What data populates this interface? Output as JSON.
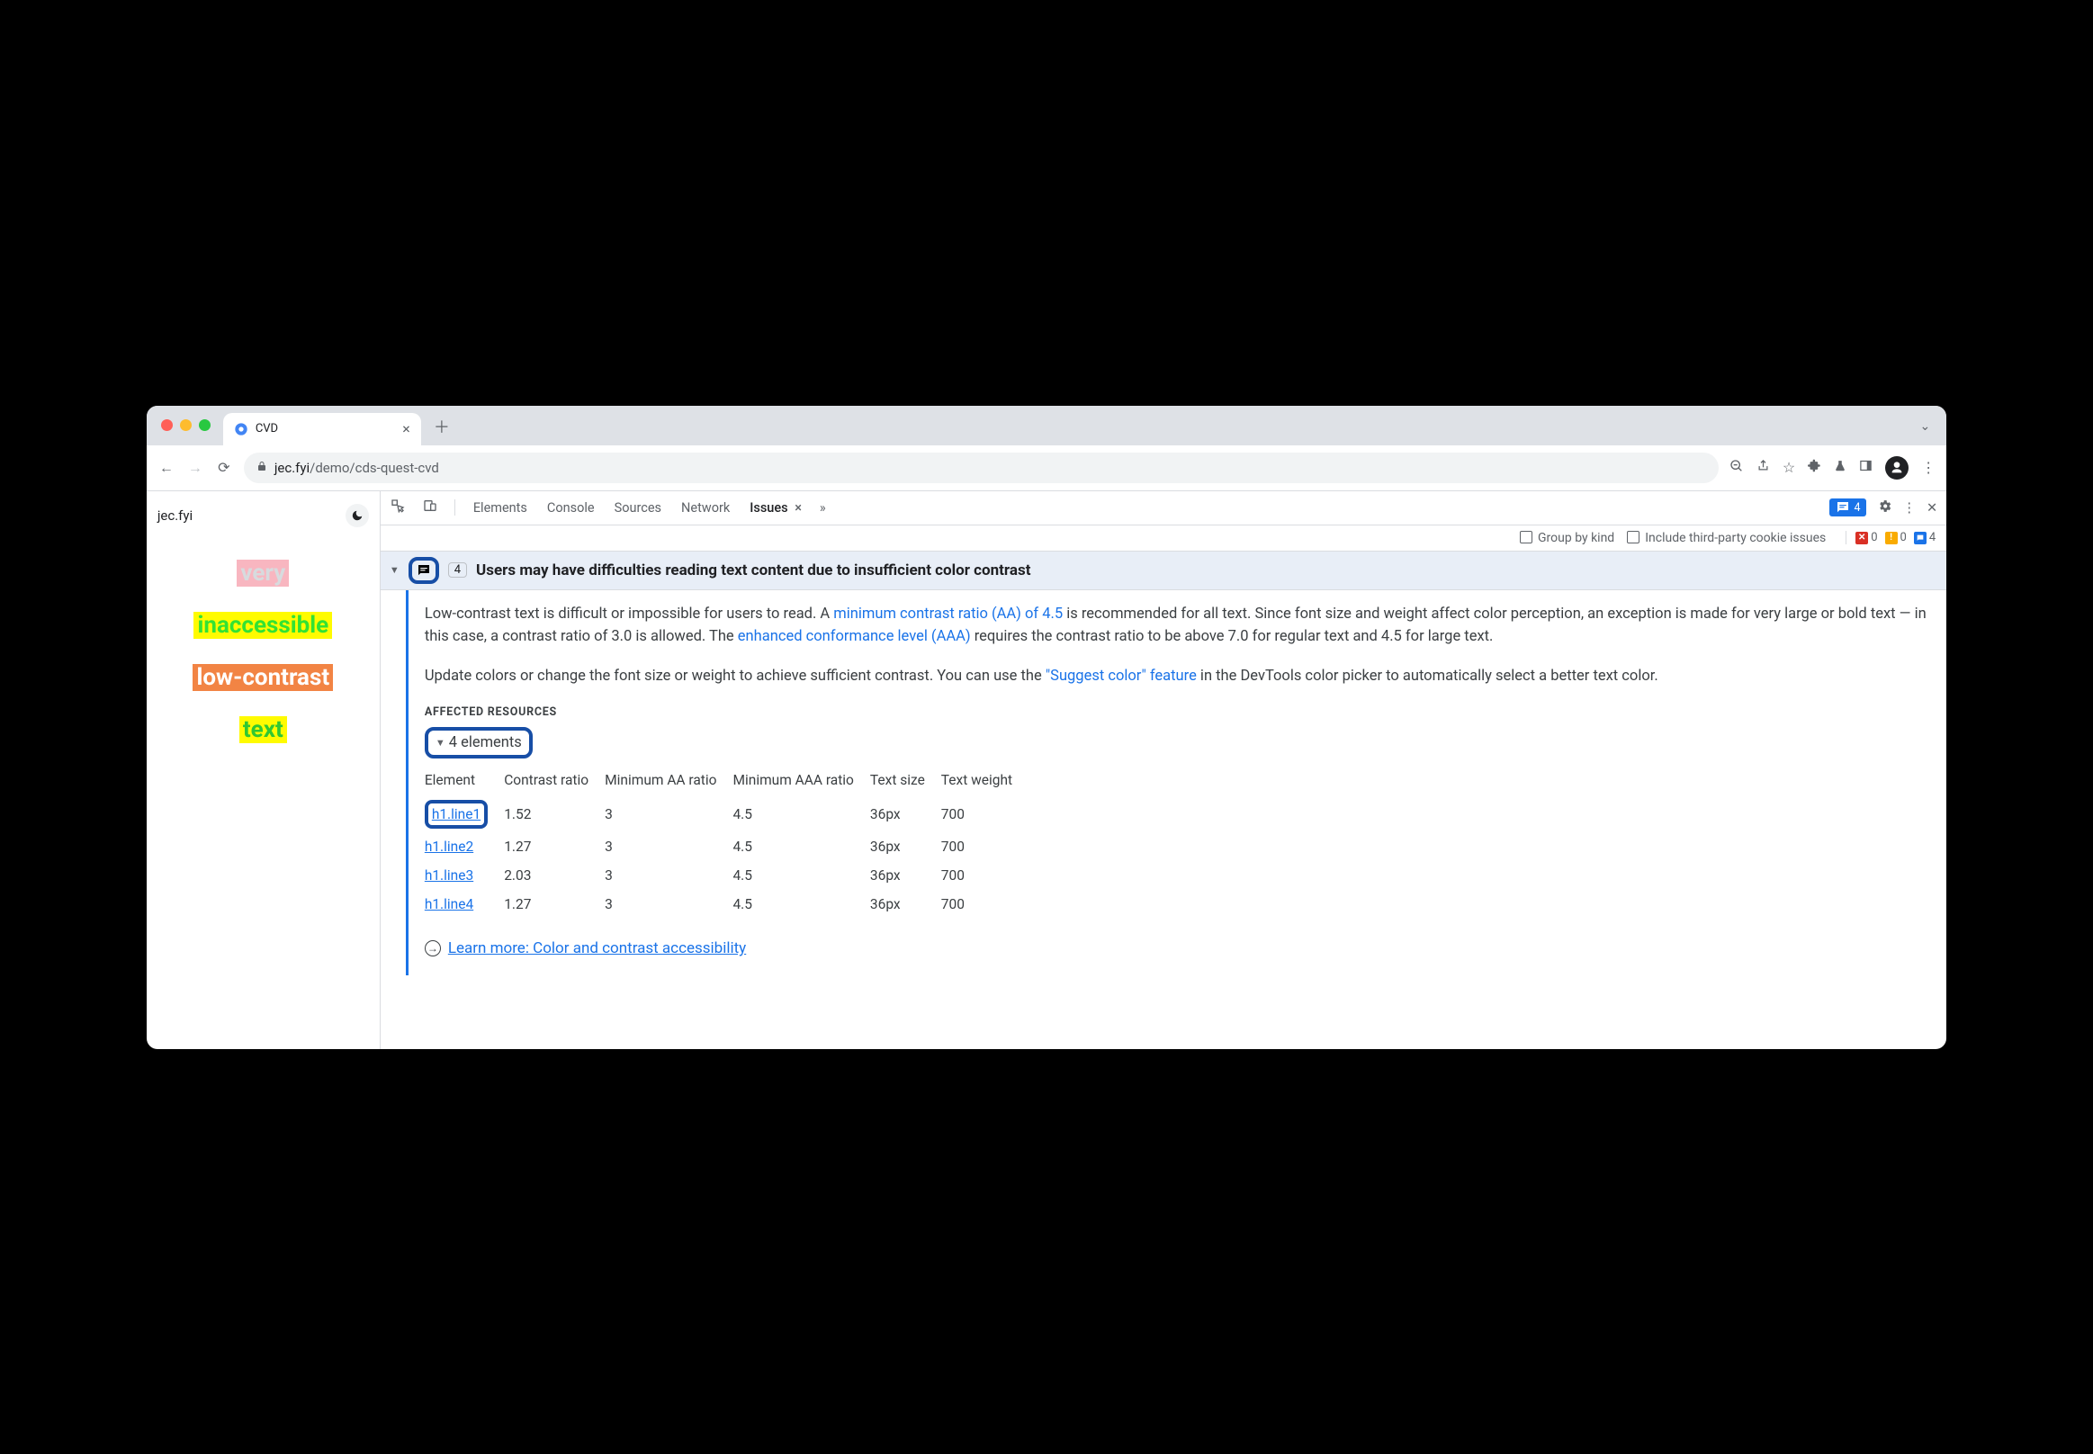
{
  "window": {
    "tab_title": "CVD",
    "url_domain": "jec.fyi",
    "url_path": "/demo/cds-quest-cvd"
  },
  "page": {
    "site_label": "jec.fyi",
    "samples": [
      {
        "text": "very",
        "fg": "#d7dbde",
        "bg": "#f8b6c0"
      },
      {
        "text": "inaccessible",
        "fg": "#33e233",
        "bg": "#fffb00"
      },
      {
        "text": "low-contrast",
        "fg": "#ffffff",
        "bg": "#f28444"
      },
      {
        "text": "text",
        "fg": "#31c831",
        "bg": "#fffb00"
      }
    ]
  },
  "devtools": {
    "tabs": [
      "Elements",
      "Console",
      "Sources",
      "Network"
    ],
    "active_tab_label": "Issues",
    "badge_count": "4",
    "subbar": {
      "group_by_kind_label": "Group by kind",
      "include_3p_label": "Include third-party cookie issues",
      "red_count": "0",
      "yellow_count": "0",
      "blue_count": "4"
    }
  },
  "issue": {
    "count": "4",
    "title": "Users may have difficulties reading text content due to insufficient color contrast",
    "para1_a": "Low-contrast text is difficult or impossible for users to read. A ",
    "link1": "minimum contrast ratio (AA) of 4.5",
    "para1_b": " is recommended for all text. Since font size and weight affect color perception, an exception is made for very large or bold text — in this case, a contrast ratio of 3.0 is allowed. The ",
    "link2": "enhanced conformance level (AAA)",
    "para1_c": " requires the contrast ratio to be above 7.0 for regular text and 4.5 for large text.",
    "para2_a": "Update colors or change the font size or weight to achieve sufficient contrast. You can use the ",
    "link3": "\"Suggest color\" feature",
    "para2_b": " in the DevTools color picker to automatically select a better text color.",
    "affected_heading": "AFFECTED RESOURCES",
    "elements_label": "4 elements",
    "columns": [
      "Element",
      "Contrast ratio",
      "Minimum AA ratio",
      "Minimum AAA ratio",
      "Text size",
      "Text weight"
    ],
    "rows": [
      {
        "el": "h1.line1",
        "cr": "1.52",
        "aa": "3",
        "aaa": "4.5",
        "size": "36px",
        "weight": "700",
        "ring": true
      },
      {
        "el": "h1.line2",
        "cr": "1.27",
        "aa": "3",
        "aaa": "4.5",
        "size": "36px",
        "weight": "700",
        "ring": false
      },
      {
        "el": "h1.line3",
        "cr": "2.03",
        "aa": "3",
        "aaa": "4.5",
        "size": "36px",
        "weight": "700",
        "ring": false
      },
      {
        "el": "h1.line4",
        "cr": "1.27",
        "aa": "3",
        "aaa": "4.5",
        "size": "36px",
        "weight": "700",
        "ring": false
      }
    ],
    "learn_more": "Learn more: Color and contrast accessibility"
  }
}
